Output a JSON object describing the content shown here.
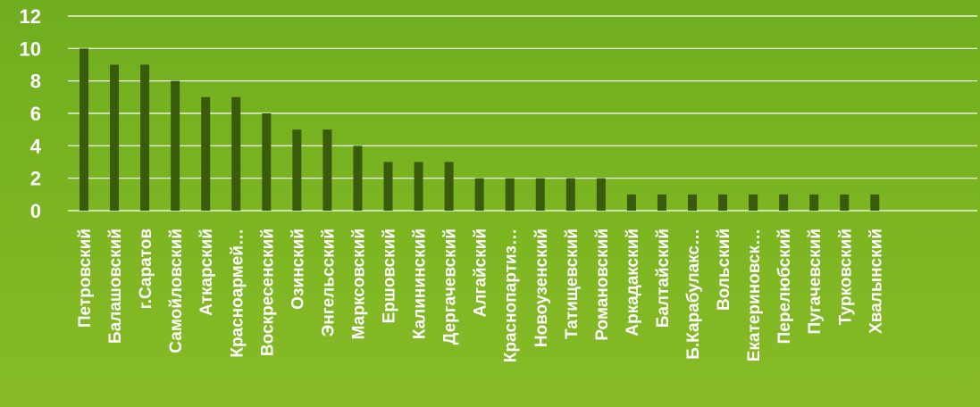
{
  "chart_data": {
    "type": "bar",
    "categories": [
      "Петровский",
      "Балашовский",
      "г.Саратов",
      "Самойловский",
      "Аткарский",
      "Красноармей…",
      "Воскресенский",
      "Озинский",
      "Энгельсский",
      "Марксовский",
      "Ершовский",
      "Калининский",
      "Дергачевский",
      "Алгайский",
      "Краснопартиз…",
      "Новоузенский",
      "Татищевский",
      "Романовский",
      "Аркадакский",
      "Балтайский",
      "Б.Карабулакс…",
      "Вольский",
      "Екатериновск…",
      "Перелюбский",
      "Пугачевский",
      "Турковский",
      "Хвалынский"
    ],
    "values": [
      10,
      9,
      9,
      8,
      7,
      7,
      6,
      5,
      5,
      4,
      3,
      3,
      3,
      2,
      2,
      2,
      2,
      2,
      1,
      1,
      1,
      1,
      1,
      1,
      1,
      1,
      1
    ],
    "yticks": [
      "0",
      "2",
      "4",
      "6",
      "8",
      "10",
      "12"
    ],
    "ylim": [
      0,
      12
    ],
    "grid": true,
    "legend": "none",
    "colors": {
      "bar": "#3a5a0c",
      "grid": "#ffffff",
      "text": "#ffffff"
    }
  }
}
